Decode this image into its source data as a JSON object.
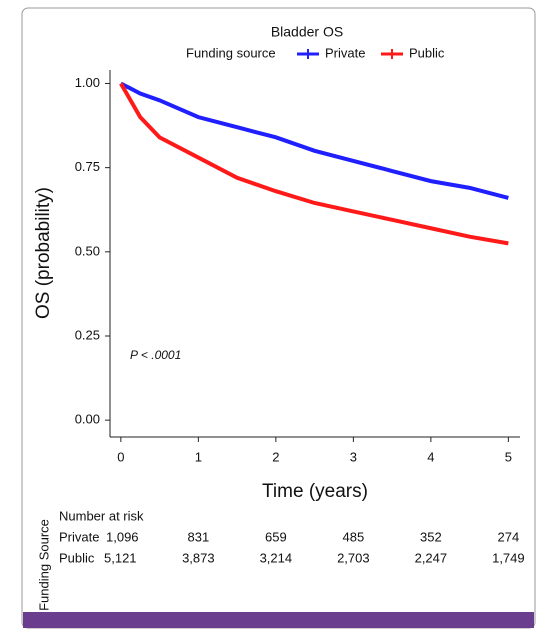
{
  "chart_data": {
    "type": "line",
    "title": "Bladder OS",
    "legend_title": "Funding source",
    "x": [
      0,
      0.25,
      0.5,
      1,
      1.5,
      2,
      2.5,
      3,
      3.5,
      4,
      4.5,
      5
    ],
    "series": [
      {
        "name": "Private",
        "color": "#1f1fff",
        "values": [
          1.0,
          0.97,
          0.95,
          0.9,
          0.87,
          0.84,
          0.8,
          0.77,
          0.74,
          0.71,
          0.69,
          0.66
        ]
      },
      {
        "name": "Public",
        "color": "#ff1a1a",
        "values": [
          1.0,
          0.9,
          0.84,
          0.78,
          0.72,
          0.68,
          0.645,
          0.62,
          0.595,
          0.57,
          0.545,
          0.525
        ]
      }
    ],
    "xlabel": "Time (years)",
    "ylabel": "OS (probability)",
    "xlim": [
      -0.14,
      5.15
    ],
    "ylim": [
      -0.05,
      1.04
    ],
    "xticks": [
      0,
      1,
      2,
      3,
      4,
      5
    ],
    "yticks": [
      {
        "value": 0,
        "label": "0.00"
      },
      {
        "value": 0.25,
        "label": "0.25"
      },
      {
        "value": 0.5,
        "label": "0.50"
      },
      {
        "value": 0.75,
        "label": "0.75"
      },
      {
        "value": 1,
        "label": "1.00"
      }
    ],
    "annotation": "P < .0001"
  },
  "risk_table": {
    "side_label": "Funding Source",
    "title": "Number at risk",
    "rows": [
      {
        "label": "Private",
        "counts": [
          "1,096",
          "831",
          "659",
          "485",
          "352",
          "274"
        ]
      },
      {
        "label": "Public",
        "counts": [
          "5,121",
          "3,873",
          "3,214",
          "2,703",
          "2,247",
          "1,749"
        ]
      }
    ]
  }
}
